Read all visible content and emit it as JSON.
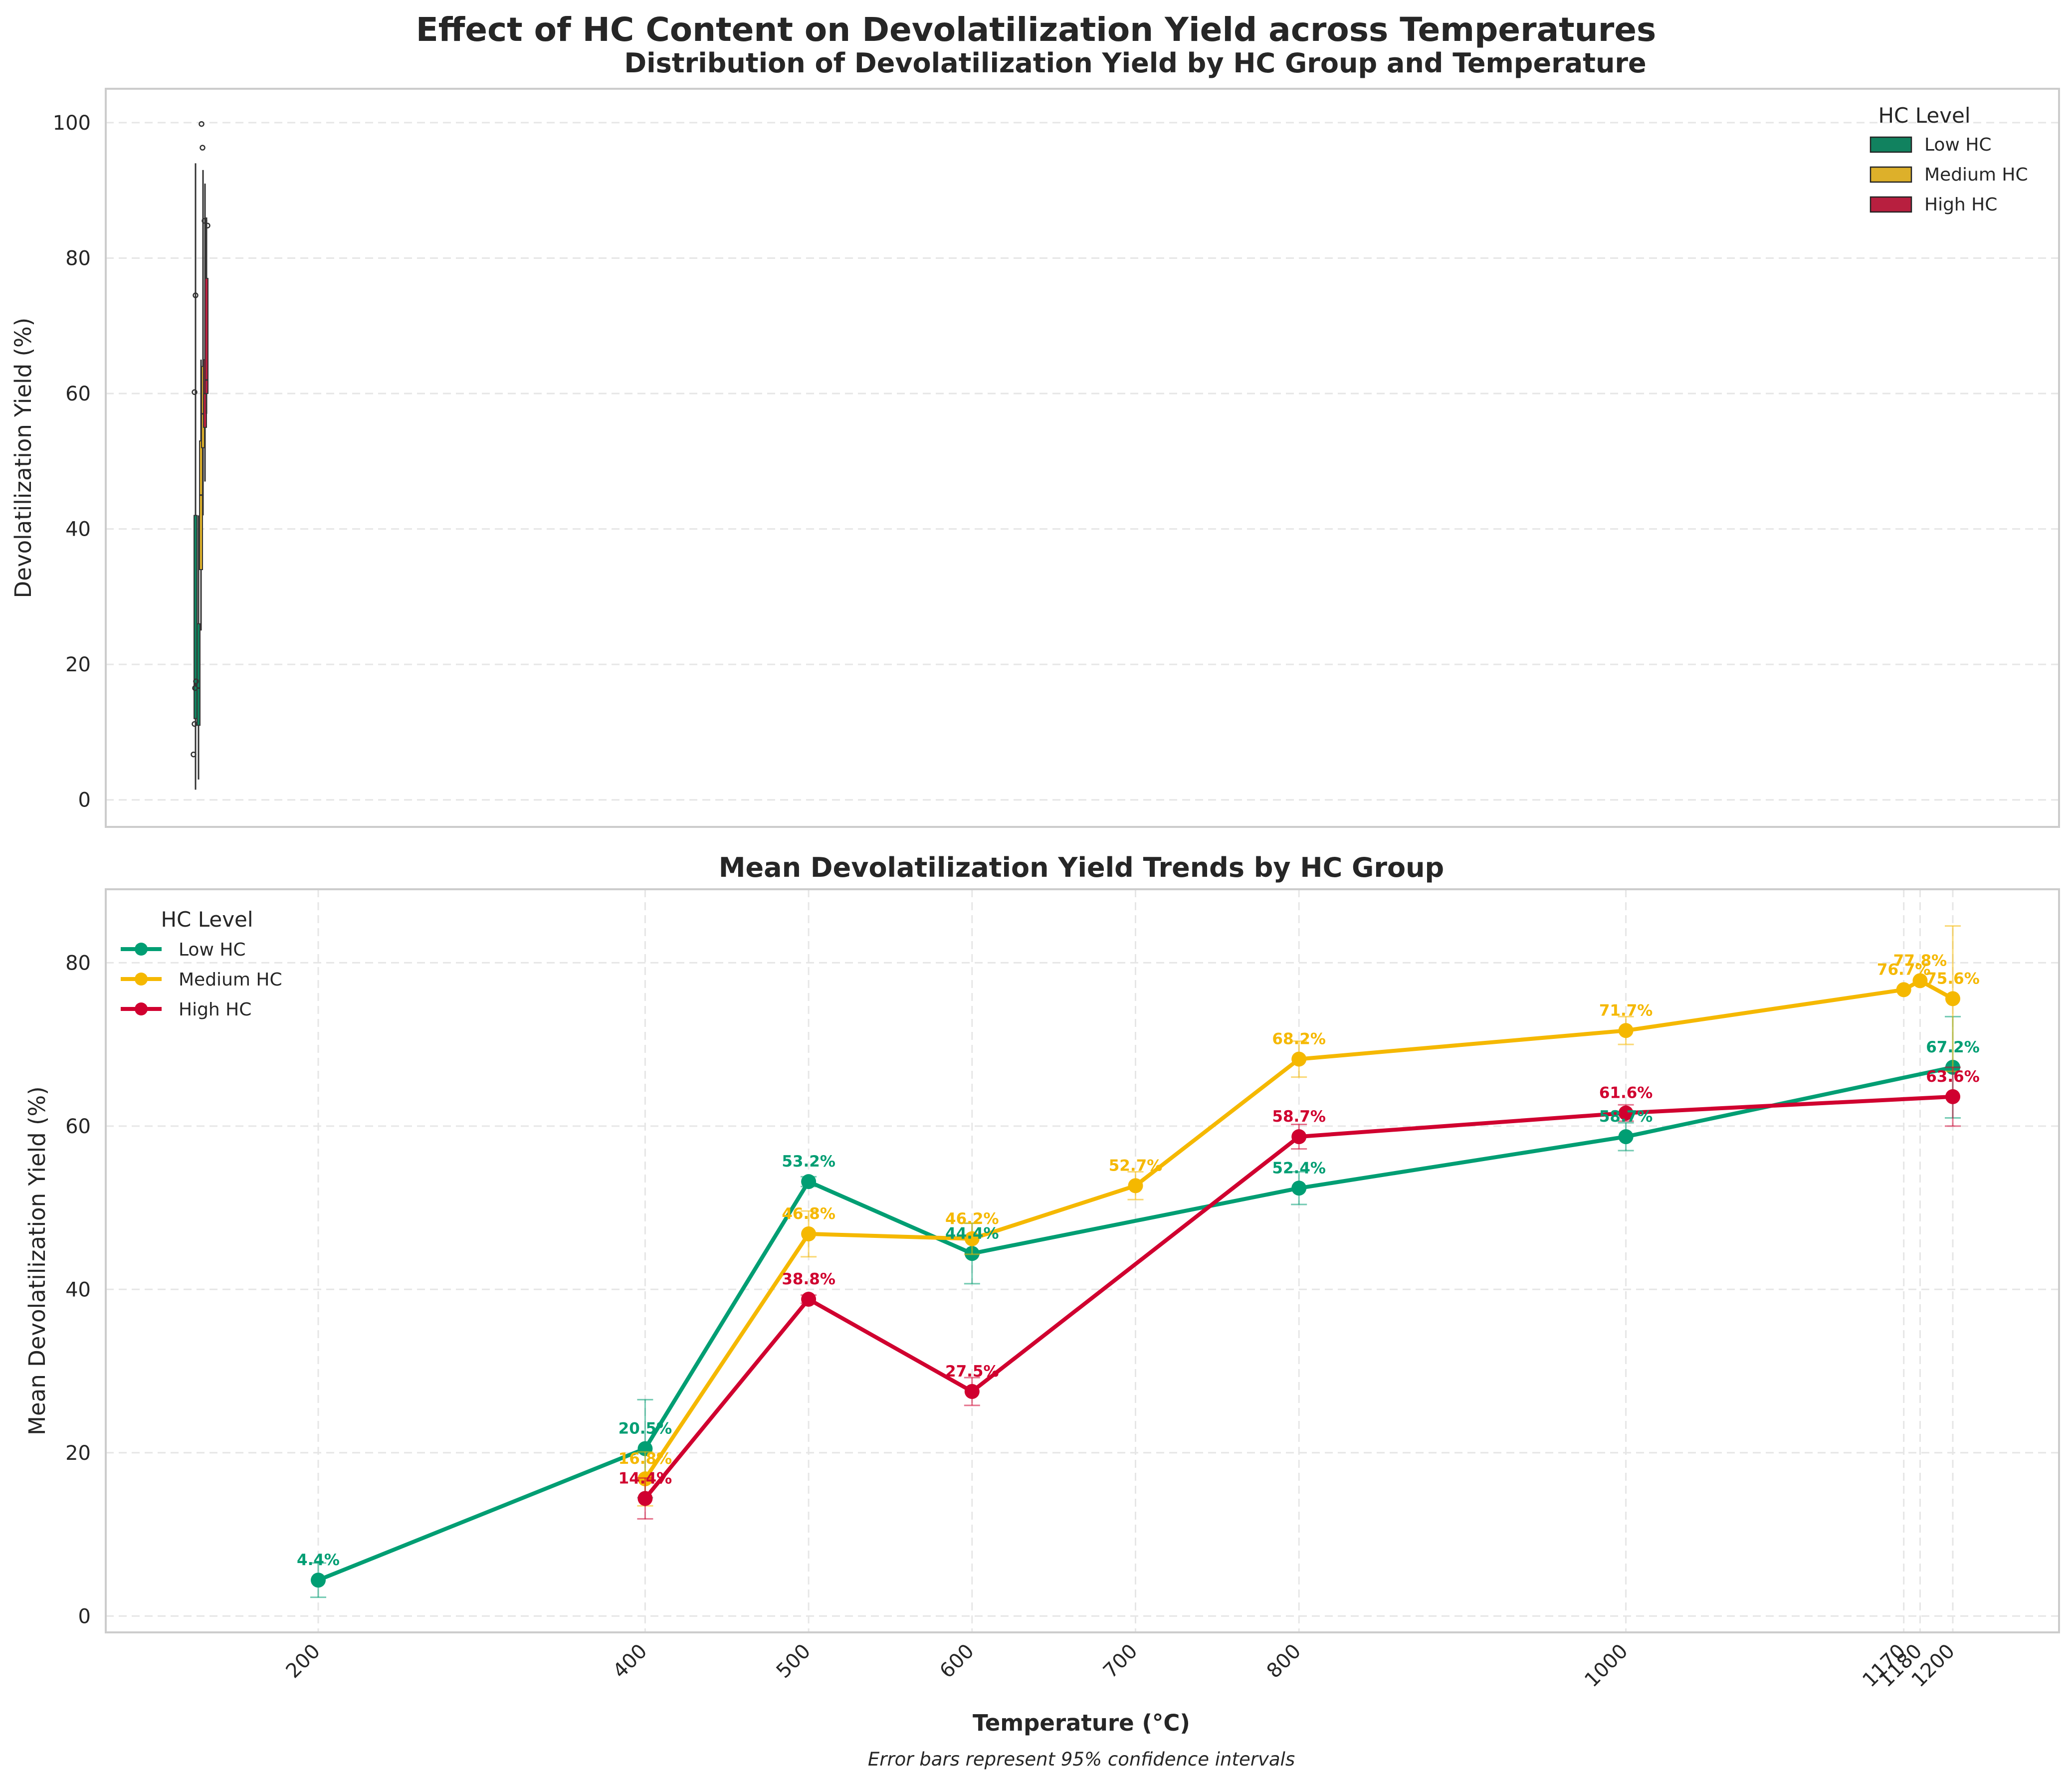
{
  "title": "Effect of HC Content on Devolatilization Yield across Temperatures",
  "footnote": "Error bars represent 95% confidence intervals",
  "colors": {
    "low": "#009E73",
    "medium": "#F5B800",
    "high": "#D0002F",
    "box_low": "#11825F",
    "box_medium": "#DDB02A",
    "box_high": "#B81F3F",
    "grid": "#e6e6e6",
    "frame": "#cccccc",
    "text": "#262626"
  },
  "chart_data": [
    {
      "type": "box",
      "title": "Distribution of Devolatilization Yield by HC Group and Temperature",
      "xlabel": "",
      "ylabel": "Devolatilization Yield (%)",
      "ylim": [
        -4,
        105
      ],
      "yticks": [
        0,
        20,
        40,
        60,
        80,
        100
      ],
      "grid": true,
      "legend": {
        "title": "HC Level",
        "placement": "top-right",
        "entries": [
          "Low HC",
          "Medium HC",
          "High HC"
        ]
      },
      "boxes": [
        {
          "series": "Low HC",
          "whisker_low": 1.5,
          "q1": 12,
          "median": 17,
          "q3": 42,
          "whisker_high": 94
        },
        {
          "series": "Low HC",
          "whisker_low": 3,
          "q1": 11,
          "median": 16.5,
          "q3": 26,
          "whisker_high": 42
        },
        {
          "series": "Medium HC",
          "whisker_low": 25,
          "q1": 34,
          "median": 45,
          "q3": 53,
          "whisker_high": 65
        },
        {
          "series": "Medium HC",
          "whisker_low": 42,
          "q1": 52,
          "median": 57,
          "q3": 64,
          "whisker_high": 93
        },
        {
          "series": "High HC",
          "whisker_low": 47,
          "q1": 55,
          "median": 60,
          "q3": 65,
          "whisker_high": 91
        },
        {
          "series": "High HC",
          "whisker_low": 57,
          "q1": 60,
          "median": 62,
          "q3": 77,
          "whisker_high": 86
        }
      ],
      "outliers": [
        99.8,
        96.3,
        85.5,
        84.8,
        74.5,
        60.2,
        17.5,
        16.5,
        11.2,
        6.7
      ]
    },
    {
      "type": "line",
      "title": "Mean Devolatilization Yield Trends by HC Group",
      "xlabel": "Temperature (°C)",
      "ylabel": "Mean Devolatilization Yield (%)",
      "xlim": [
        70,
        1265
      ],
      "ylim": [
        -2,
        89
      ],
      "xticks": [
        200,
        400,
        500,
        600,
        700,
        800,
        1000,
        1170,
        1180,
        1200
      ],
      "yticks": [
        0,
        20,
        40,
        60,
        80
      ],
      "grid": true,
      "legend": {
        "title": "HC Level",
        "placement": "top-left",
        "entries": [
          "Low HC",
          "Medium HC",
          "High HC"
        ]
      },
      "series": [
        {
          "name": "Low HC",
          "color_key": "low",
          "points": [
            {
              "x": 200,
              "y": 4.4,
              "lo": 2.3,
              "hi": 6.5,
              "label": "4.4%"
            },
            {
              "x": 400,
              "y": 20.5,
              "lo": 14.5,
              "hi": 26.5,
              "label": "20.5%"
            },
            {
              "x": 500,
              "y": 53.2,
              "lo": 52.6,
              "hi": 53.8,
              "label": "53.2%"
            },
            {
              "x": 600,
              "y": 44.4,
              "lo": 40.7,
              "hi": 48.1,
              "label": "44.4%"
            },
            {
              "x": 800,
              "y": 52.4,
              "lo": 50.4,
              "hi": 54.4,
              "label": "52.4%"
            },
            {
              "x": 1000,
              "y": 58.7,
              "lo": 57.0,
              "hi": 60.4,
              "label": "58.7%"
            },
            {
              "x": 1200,
              "y": 67.2,
              "lo": 61.0,
              "hi": 73.4,
              "label": "67.2%"
            }
          ]
        },
        {
          "name": "Medium HC",
          "color_key": "medium",
          "points": [
            {
              "x": 400,
              "y": 16.8,
              "lo": 13.5,
              "hi": 20.1,
              "label": "16.8%"
            },
            {
              "x": 500,
              "y": 46.8,
              "lo": 44.0,
              "hi": 49.6,
              "label": "46.8%"
            },
            {
              "x": 600,
              "y": 46.2,
              "lo": 44.3,
              "hi": 48.1,
              "label": "46.2%"
            },
            {
              "x": 700,
              "y": 52.7,
              "lo": 51.0,
              "hi": 54.4,
              "label": "52.7%"
            },
            {
              "x": 800,
              "y": 68.2,
              "lo": 66.0,
              "hi": 70.4,
              "label": "68.2%"
            },
            {
              "x": 1000,
              "y": 71.7,
              "lo": 70.0,
              "hi": 73.4,
              "label": "71.7%"
            },
            {
              "x": 1170,
              "y": 76.7,
              "lo": 76.7,
              "hi": 76.7,
              "label": "76.7%"
            },
            {
              "x": 1180,
              "y": 77.8,
              "lo": 77.8,
              "hi": 77.8,
              "label": "77.8%"
            },
            {
              "x": 1200,
              "y": 75.6,
              "lo": 66.7,
              "hi": 84.5,
              "label": "75.6%"
            }
          ]
        },
        {
          "name": "High HC",
          "color_key": "high",
          "points": [
            {
              "x": 400,
              "y": 14.4,
              "lo": 11.9,
              "hi": 16.9,
              "label": "14.4%"
            },
            {
              "x": 500,
              "y": 38.8,
              "lo": 38.3,
              "hi": 39.3,
              "label": "38.8%"
            },
            {
              "x": 600,
              "y": 27.5,
              "lo": 25.8,
              "hi": 29.2,
              "label": "27.5%"
            },
            {
              "x": 800,
              "y": 58.7,
              "lo": 57.2,
              "hi": 60.2,
              "label": "58.7%"
            },
            {
              "x": 1000,
              "y": 61.6,
              "lo": 60.6,
              "hi": 62.6,
              "label": "61.6%"
            },
            {
              "x": 1200,
              "y": 63.6,
              "lo": 60.0,
              "hi": 67.2,
              "label": "63.6%"
            }
          ]
        }
      ]
    }
  ]
}
